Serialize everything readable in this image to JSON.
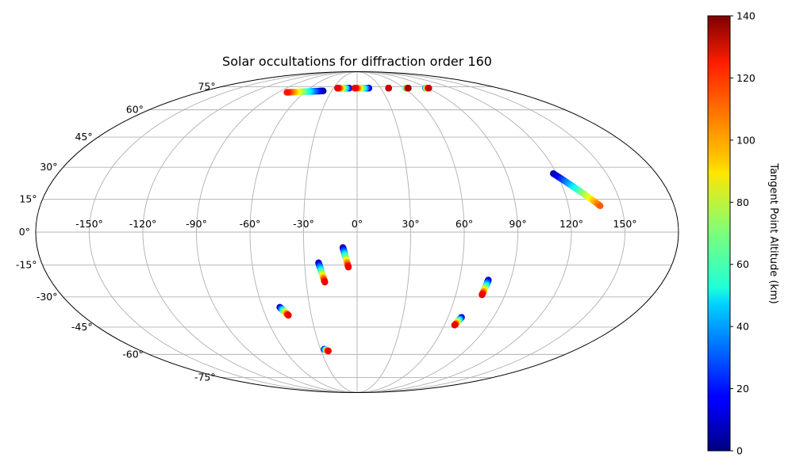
{
  "chart_data": {
    "type": "scatter",
    "projection": "mollweide",
    "title": "Solar occultations for diffraction order 160",
    "xlabel": "",
    "ylabel": "",
    "grid": true,
    "xlim": [
      -180,
      180
    ],
    "ylim": [
      -90,
      90
    ],
    "longitude_ticks": [
      -150,
      -120,
      -90,
      -60,
      -30,
      0,
      30,
      60,
      90,
      120,
      150
    ],
    "longitude_tick_labels": [
      "-150°",
      "-120°",
      "-90°",
      "-60°",
      "-30°",
      "0°",
      "30°",
      "60°",
      "90°",
      "120°",
      "150°"
    ],
    "latitude_ticks": [
      -75,
      -60,
      -45,
      -30,
      -15,
      0,
      15,
      30,
      45,
      60,
      75
    ],
    "latitude_tick_labels": [
      "-75°",
      "-60°",
      "-45°",
      "-30°",
      "-15°",
      "0°",
      "15°",
      "30°",
      "45°",
      "60°",
      "75°"
    ],
    "colorbar": {
      "label": "Tangent Point Altitude (km)",
      "colormap": "jet",
      "range": [
        0,
        140
      ],
      "ticks": [
        0,
        20,
        40,
        60,
        80,
        100,
        120,
        140
      ],
      "tick_labels": [
        "0",
        "20",
        "40",
        "60",
        "80",
        "100",
        "120",
        "140"
      ]
    },
    "series": [
      {
        "lon_start": -40,
        "lat_start": 72,
        "alt_start": 0,
        "lon_end": -80,
        "lat_end": 71,
        "alt_end": 120
      },
      {
        "lon_start": -10,
        "lat_start": 74,
        "alt_start": 5,
        "lon_end": -25,
        "lat_end": 74,
        "alt_end": 125
      },
      {
        "lon_start": 15,
        "lat_start": 74,
        "alt_start": 5,
        "lon_end": -3,
        "lat_end": 74,
        "alt_end": 125
      },
      {
        "lon_start": 40,
        "lat_start": 74,
        "alt_start": 30,
        "lon_end": 40,
        "lat_end": 74,
        "alt_end": 130
      },
      {
        "lon_start": 62,
        "lat_start": 74,
        "alt_start": 40,
        "lon_end": 65,
        "lat_end": 74,
        "alt_end": 135
      },
      {
        "lon_start": 87,
        "lat_start": 74,
        "alt_start": 30,
        "lon_end": 91,
        "lat_end": 74,
        "alt_end": 130
      },
      {
        "lon_start": 118,
        "lat_start": 27,
        "alt_start": 5,
        "lon_end": 138,
        "lat_end": 12,
        "alt_end": 110
      },
      {
        "lon_start": -8,
        "lat_start": -7,
        "alt_start": 5,
        "lon_end": -5,
        "lat_end": -16,
        "alt_end": 125
      },
      {
        "lon_start": -22,
        "lat_start": -14,
        "alt_start": 5,
        "lon_end": -19,
        "lat_end": -23,
        "alt_end": 125
      },
      {
        "lon_start": -49,
        "lat_start": -35,
        "alt_start": 5,
        "lon_end": -45,
        "lat_end": -39,
        "alt_end": 125
      },
      {
        "lon_start": -27,
        "lat_start": -57,
        "alt_start": 5,
        "lon_end": -24,
        "lat_end": -58,
        "alt_end": 125
      },
      {
        "lon_start": 77,
        "lat_start": -22,
        "alt_start": 5,
        "lon_end": 76,
        "lat_end": -29,
        "alt_end": 125
      },
      {
        "lon_start": 69,
        "lat_start": -40,
        "alt_start": 5,
        "lon_end": 67,
        "lat_end": -44,
        "alt_end": 125
      }
    ]
  }
}
